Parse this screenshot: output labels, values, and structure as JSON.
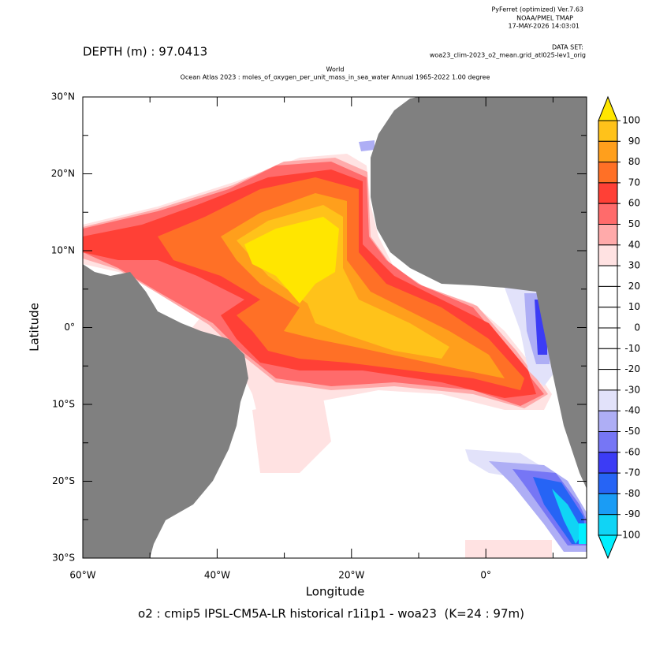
{
  "header": {
    "program": "PyFerret (optimized) Ver.7.63",
    "institution": "NOAA/PMEL TMAP",
    "timestamp": "17-MAY-2026 14:03:01",
    "dataset_label": "DATA SET:",
    "dataset": "woa23_clim-2023_o2_mean.grid_atl025-lev1_orig",
    "depth": "DEPTH (m) : 97.0413",
    "title_line1": "World",
    "title_line2": "Ocean Atlas 2023 : moles_of_oxygen_per_unit_mass_in_sea_water Annual 1965-2022 1.00 degree"
  },
  "map": {
    "xlabel": "Longitude",
    "ylabel": "Latitude",
    "caption": "o2 : cmip5 IPSL-CM5A-LR historical r1i1p1 - woa23  (K=24 : 97m)",
    "xlim": [
      -60,
      15
    ],
    "ylim": [
      -30,
      30
    ],
    "xticks": [
      {
        "value": -60,
        "label": "60°W"
      },
      {
        "value": -40,
        "label": "40°W"
      },
      {
        "value": -20,
        "label": "20°W"
      },
      {
        "value": 0,
        "label": "0°"
      }
    ],
    "xminor_ticks": [
      -50,
      -30,
      -10,
      10
    ],
    "yticks": [
      {
        "value": 30,
        "label": "30°N"
      },
      {
        "value": 20,
        "label": "20°N"
      },
      {
        "value": 10,
        "label": "10°N"
      },
      {
        "value": 0,
        "label": "0°"
      },
      {
        "value": -10,
        "label": "10°S"
      },
      {
        "value": -20,
        "label": "20°S"
      },
      {
        "value": -30,
        "label": "30°S"
      }
    ],
    "yminor_ticks": [
      25,
      15,
      5,
      -5,
      -15,
      -25
    ],
    "land_color": "#808080"
  },
  "colorbar": {
    "levels": [
      100,
      90,
      80,
      70,
      60,
      50,
      40,
      30,
      20,
      10,
      0,
      -10,
      -20,
      -30,
      -40,
      -50,
      -60,
      -70,
      -80,
      -90,
      -100
    ],
    "colors": [
      "#ffe600",
      "#ffc21a",
      "#ff9f1c",
      "#ff7026",
      "#ff4036",
      "#ff6b6b",
      "#ffaaaa",
      "#ffe2e2",
      "#ffffff",
      "#ffffff",
      "#ffffff",
      "#ffffff",
      "#ffffff",
      "#ffffff",
      "#e2e2fa",
      "#aeaef5",
      "#7676f5",
      "#3c3cf5",
      "#2664f5",
      "#1a9cf5",
      "#10d4f5",
      "#00f0ff"
    ]
  }
}
